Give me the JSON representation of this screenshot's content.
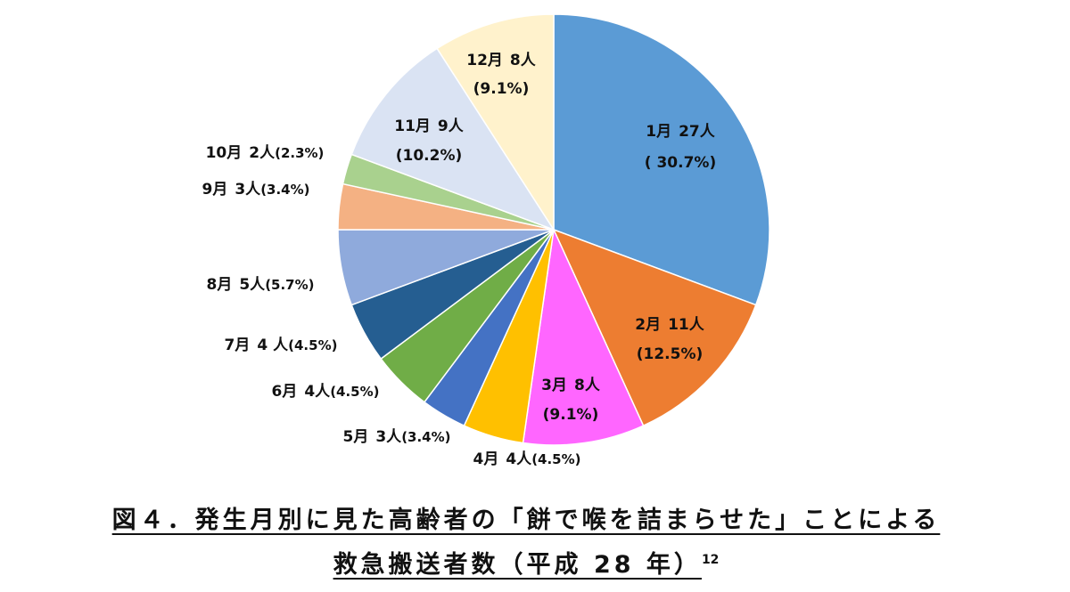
{
  "chart_data": {
    "type": "pie",
    "title": "図４．発生月別に見た高齢者の「餅で喉を詰まらせた」ことによる",
    "subtitle": "救急搬送者数（平成 28 年）",
    "footnote_ref": "12",
    "categories": [
      "1月",
      "2月",
      "3月",
      "4月",
      "5月",
      "6月",
      "7月",
      "8月",
      "9月",
      "10月",
      "11月",
      "12月"
    ],
    "values": [
      27,
      11,
      8,
      4,
      3,
      4,
      4,
      5,
      3,
      2,
      9,
      8
    ],
    "value_labels": [
      "27人",
      "11人",
      "8人",
      "4人",
      "3人",
      "4人",
      "4 人",
      "5人",
      "3人",
      "2人",
      "9人",
      "8人"
    ],
    "percent_labels": [
      "( 30.7%)",
      "(12.5%)",
      "(9.1%)",
      "(4.5%)",
      "(3.4%)",
      "(4.5%)",
      "(4.5%)",
      "(5.7%)",
      "(3.4%)",
      "(2.3%)",
      "(10.2%)",
      "(9.1%)"
    ],
    "colors": [
      "#5b9bd5",
      "#ed7d31",
      "#ff66ff",
      "#ffc000",
      "#4472c4",
      "#70ad47",
      "#255e91",
      "#8faadc",
      "#f4b183",
      "#a9d18e",
      "#dae3f3",
      "#fff2cc"
    ]
  }
}
